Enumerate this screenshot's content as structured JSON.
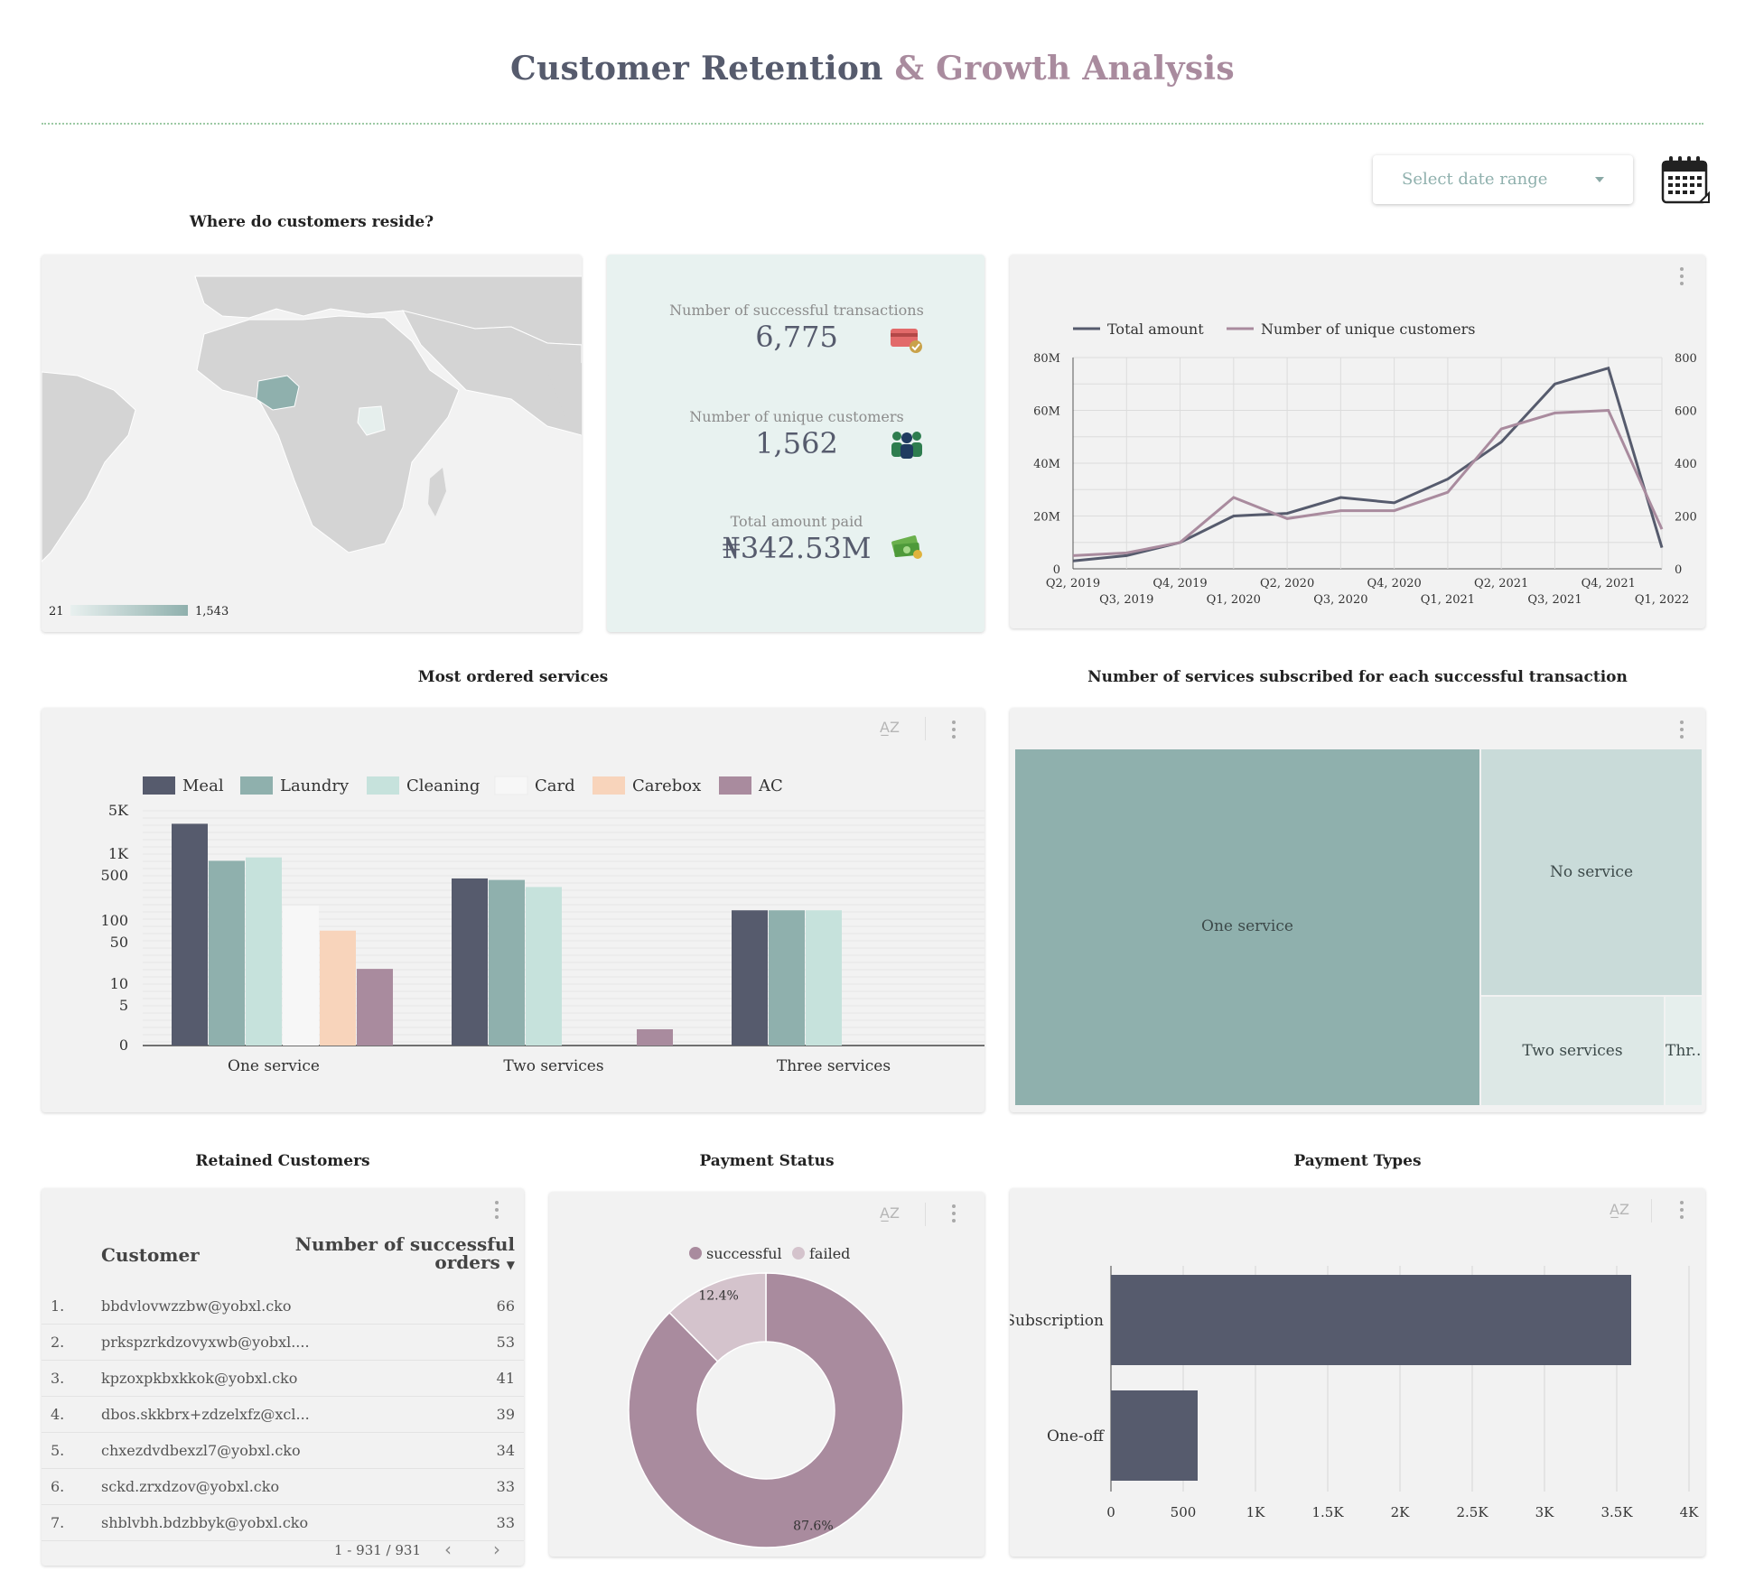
{
  "header": {
    "title_part1": "Customer Retention",
    "title_part2": "& Growth Analysis"
  },
  "date_selector": {
    "placeholder": "Select date range"
  },
  "map": {
    "title": "Where do customers reside?",
    "scale_min": "21",
    "scale_max": "1,543",
    "highlight_color": "#8fb0ad"
  },
  "kpis": [
    {
      "label": "Number of successful transactions",
      "value": "6,775",
      "icon": "credit-card-icon"
    },
    {
      "label": "Number of unique customers",
      "value": "1,562",
      "icon": "people-icon"
    },
    {
      "label": "Total amount paid",
      "value": "₦342.53M",
      "icon": "money-icon"
    }
  ],
  "line_chart": {
    "chart_data": {
      "type": "line",
      "x": [
        "Q2, 2019",
        "Q3, 2019",
        "Q4, 2019",
        "Q1, 2020",
        "Q2, 2020",
        "Q3, 2020",
        "Q4, 2020",
        "Q1, 2021",
        "Q2, 2021",
        "Q3, 2021",
        "Q4, 2021",
        "Q1, 2022"
      ],
      "series": [
        {
          "name": "Total amount",
          "axis": "left",
          "color": "#565b6d",
          "values": [
            3000000,
            5000000,
            10000000,
            20000000,
            21000000,
            27000000,
            25000000,
            34000000,
            48000000,
            70000000,
            76000000,
            8000000
          ]
        },
        {
          "name": "Number of unique customers",
          "axis": "right",
          "color": "#a98b9e",
          "values": [
            50,
            60,
            100,
            270,
            190,
            220,
            220,
            290,
            530,
            590,
            600,
            150
          ]
        }
      ],
      "left_ticks": [
        "0",
        "20M",
        "40M",
        "60M",
        "80M"
      ],
      "right_ticks": [
        "0",
        "200",
        "400",
        "600",
        "800"
      ],
      "left_lim": [
        0,
        80000000
      ],
      "right_lim": [
        0,
        800
      ],
      "grid": true,
      "legend": "top-left"
    }
  },
  "services_chart": {
    "title": "Most ordered services",
    "chart_data": {
      "type": "bar",
      "scale": "log",
      "categories": [
        "One service",
        "Two services",
        "Three services"
      ],
      "series": [
        {
          "name": "Meal",
          "color": "#565b6d",
          "values": [
            3000,
            350,
            100
          ]
        },
        {
          "name": "Laundry",
          "color": "#8fb0ad",
          "values": [
            700,
            330,
            100
          ]
        },
        {
          "name": "Cleaning",
          "color": "#c6e2dc",
          "values": [
            800,
            250,
            100
          ]
        },
        {
          "name": "Card",
          "color": "#f7f7f7",
          "values": [
            120,
            0,
            0
          ]
        },
        {
          "name": "Carebox",
          "color": "#f8d4bb",
          "values": [
            45,
            0,
            0
          ]
        },
        {
          "name": "AC",
          "color": "#a98b9e",
          "values": [
            10,
            2,
            0
          ]
        }
      ],
      "y_ticks": [
        "0",
        "5",
        "10",
        "50",
        "100",
        "500",
        "1K",
        "5K"
      ],
      "legend": "top"
    }
  },
  "treemap": {
    "title": "Number of services subscribed for each successful transaction",
    "chart_data": {
      "type": "treemap",
      "items": [
        {
          "label": "One service",
          "color": "#8fb0ad"
        },
        {
          "label": "No service",
          "color": "#c9dbd9"
        },
        {
          "label": "Two services",
          "color": "#dde8e6"
        },
        {
          "label": "Thr...",
          "color": "#e6efed"
        }
      ]
    }
  },
  "retained_table": {
    "title": "Retained Customers",
    "col_customer": "Customer",
    "col_orders_line1": "Number of successful",
    "col_orders_line2": "orders",
    "rows": [
      {
        "idx": "1.",
        "email": "bbdvlovwzzbw@yobxl.cko",
        "orders": "66"
      },
      {
        "idx": "2.",
        "email": "prkspzrkdzovyxwb@yobxl....",
        "orders": "53"
      },
      {
        "idx": "3.",
        "email": "kpzoxpkbxkkok@yobxl.cko",
        "orders": "41"
      },
      {
        "idx": "4.",
        "email": "dbos.skkbrx+zdzelxfz@xcl...",
        "orders": "39"
      },
      {
        "idx": "5.",
        "email": "chxezdvdbexzl7@yobxl.cko",
        "orders": "34"
      },
      {
        "idx": "6.",
        "email": "sckd.zrxdzov@yobxl.cko",
        "orders": "33"
      },
      {
        "idx": "7.",
        "email": "shblvbh.bdzbbyk@yobxl.cko",
        "orders": "33"
      }
    ],
    "pagination": "1 - 931 / 931"
  },
  "payment_status": {
    "title": "Payment Status",
    "chart_data": {
      "type": "pie",
      "donut": true,
      "slices": [
        {
          "name": "successful",
          "value": 87.6,
          "label": "87.6%",
          "color": "#a98b9e"
        },
        {
          "name": "failed",
          "value": 12.4,
          "label": "12.4%",
          "color": "#d4c3cc"
        }
      ],
      "legend": "top"
    }
  },
  "payment_types": {
    "title": "Payment Types",
    "chart_data": {
      "type": "bar",
      "orientation": "horizontal",
      "categories": [
        "Subscription",
        "One-off"
      ],
      "values": [
        3600,
        600
      ],
      "x_ticks": [
        "0",
        "500",
        "1K",
        "1.5K",
        "2K",
        "2.5K",
        "3K",
        "3.5K",
        "4K"
      ],
      "xlim": [
        0,
        4000
      ],
      "color": "#565b6d"
    }
  }
}
